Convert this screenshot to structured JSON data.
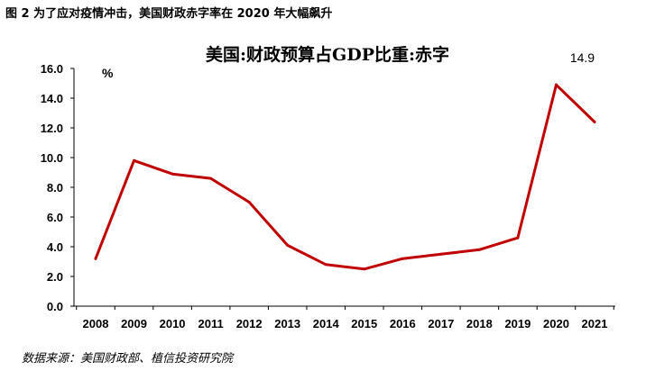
{
  "figure": {
    "caption": "图 2  为了应对疫情冲击，美国财政赤字率在 2020 年大幅飙升",
    "source": "数据来源：美国财政部、植信投资研究院"
  },
  "chart_data": {
    "type": "line",
    "title": "美国:财政预算占GDP比重:赤字",
    "unit": "%",
    "categories": [
      "2008",
      "2009",
      "2010",
      "2011",
      "2012",
      "2013",
      "2014",
      "2015",
      "2016",
      "2017",
      "2018",
      "2019",
      "2020",
      "2021"
    ],
    "series": [
      {
        "values": [
          3.2,
          9.8,
          8.9,
          8.6,
          7.0,
          4.1,
          2.8,
          2.5,
          3.2,
          3.5,
          3.8,
          4.6,
          14.9,
          12.4
        ]
      }
    ],
    "ylim": [
      0,
      16
    ],
    "yticks": [
      "0.0",
      "2.0",
      "4.0",
      "6.0",
      "8.0",
      "10.0",
      "12.0",
      "14.0",
      "16.0"
    ],
    "data_labels": [
      {
        "index": 12,
        "text": "14.9"
      }
    ],
    "line_color": "#C00000",
    "grid": false,
    "legend": "none"
  }
}
